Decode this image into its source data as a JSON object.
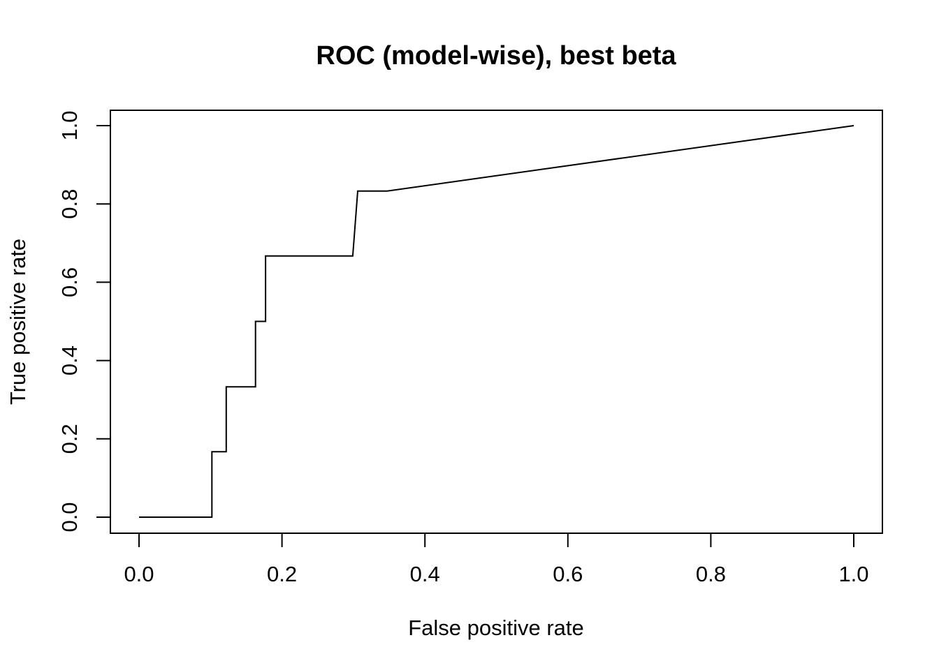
{
  "chart_data": {
    "type": "line",
    "title": "ROC (model-wise), best beta",
    "xlabel": "False positive rate",
    "ylabel": "True positive rate",
    "xlim": [
      0.0,
      1.0
    ],
    "ylim": [
      0.0,
      1.0
    ],
    "x_ticks": [
      "0.0",
      "0.2",
      "0.4",
      "0.6",
      "0.8",
      "1.0"
    ],
    "y_ticks": [
      "0.0",
      "0.2",
      "0.4",
      "0.6",
      "0.8",
      "1.0"
    ],
    "grid": false,
    "legend": "none",
    "series": [
      {
        "color": "#000000",
        "points": [
          [
            0.0,
            0.0
          ],
          [
            0.102,
            0.0
          ],
          [
            0.102,
            0.167
          ],
          [
            0.122,
            0.167
          ],
          [
            0.122,
            0.333
          ],
          [
            0.163,
            0.333
          ],
          [
            0.163,
            0.5
          ],
          [
            0.177,
            0.5
          ],
          [
            0.177,
            0.667
          ],
          [
            0.299,
            0.667
          ],
          [
            0.306,
            0.833
          ],
          [
            0.347,
            0.833
          ],
          [
            1.0,
            1.0
          ]
        ]
      }
    ]
  }
}
